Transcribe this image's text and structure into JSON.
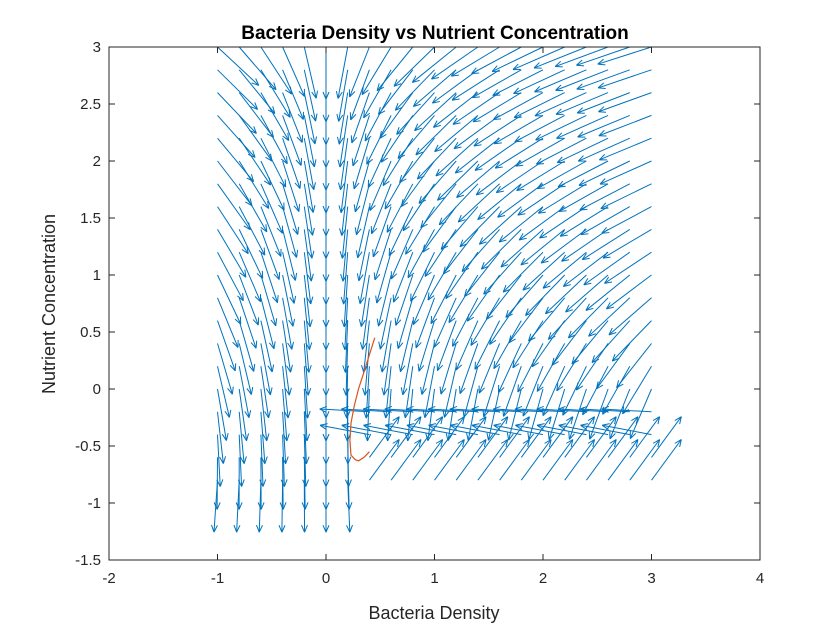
{
  "chart_data": {
    "type": "quiver",
    "title": "Bacteria Density vs Nutrient Concentration",
    "xlabel": "Bacteria Density",
    "ylabel": "Nutrient Concentration",
    "xlim": [
      -2,
      4
    ],
    "ylim": [
      -1.5,
      3
    ],
    "xticks": [
      -2,
      -1,
      0,
      1,
      2,
      3,
      4
    ],
    "xtick_labels": [
      "-2",
      "-1",
      "0",
      "1",
      "2",
      "3",
      "4"
    ],
    "yticks": [
      -1.5,
      -1,
      -0.5,
      0,
      0.5,
      1,
      1.5,
      2,
      2.5,
      3
    ],
    "ytick_labels": [
      "-1.5",
      "-1",
      "-0.5",
      "0",
      "0.5",
      "1",
      "1.5",
      "2",
      "2.5",
      "3"
    ],
    "grid": false,
    "vector_field": {
      "x_start": -1,
      "x_end": 3,
      "x_count": 21,
      "y_start": -0.8,
      "y_end": 3,
      "y_count": 20,
      "color": "#0072BD"
    },
    "trajectory": {
      "color": "#D95319",
      "x": [
        0.45,
        0.4,
        0.35,
        0.3,
        0.26,
        0.23,
        0.22,
        0.23,
        0.27,
        0.3,
        0.35,
        0.4
      ],
      "y": [
        0.45,
        0.3,
        0.15,
        0.0,
        -0.15,
        -0.3,
        -0.45,
        -0.58,
        -0.62,
        -0.63,
        -0.6,
        -0.55
      ]
    }
  }
}
